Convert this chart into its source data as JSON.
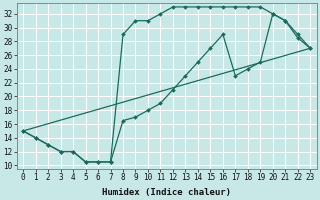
{
  "xlabel": "Humidex (Indice chaleur)",
  "bg_color": "#c8e8e8",
  "grid_color": "#ffffff",
  "line_color": "#1a6b5a",
  "xlim": [
    -0.5,
    23.5
  ],
  "ylim": [
    9.5,
    33.5
  ],
  "xticks": [
    0,
    1,
    2,
    3,
    4,
    5,
    6,
    7,
    8,
    9,
    10,
    11,
    12,
    13,
    14,
    15,
    16,
    17,
    18,
    19,
    20,
    21,
    22,
    23
  ],
  "yticks": [
    10,
    12,
    14,
    16,
    18,
    20,
    22,
    24,
    26,
    28,
    30,
    32
  ],
  "line1_x": [
    0,
    1,
    2,
    3,
    4,
    5,
    6,
    7,
    8,
    9,
    10,
    11,
    12,
    13,
    14,
    15,
    16,
    17,
    18,
    19,
    20,
    21,
    22,
    23
  ],
  "line1_y": [
    15,
    14,
    13,
    12,
    12,
    10.5,
    10.5,
    10.5,
    29,
    31,
    31,
    32,
    33,
    33,
    33,
    33,
    33,
    33,
    33,
    33,
    32,
    31,
    29,
    27
  ],
  "line2_x": [
    0,
    1,
    2,
    3,
    4,
    5,
    6,
    7,
    8,
    9,
    10,
    11,
    12,
    13,
    14,
    15,
    16,
    17,
    18,
    19,
    20,
    21,
    22,
    23
  ],
  "line2_y": [
    15,
    14,
    13,
    12,
    12,
    10.5,
    10.5,
    10.5,
    16.5,
    17,
    18,
    19,
    21,
    23,
    25,
    27,
    29,
    23,
    24,
    25,
    32,
    31,
    28.5,
    27
  ],
  "line3_x": [
    0,
    23
  ],
  "line3_y": [
    15,
    27
  ],
  "marker_style": "D",
  "marker_size": 2.0,
  "linewidth": 0.9,
  "tick_fontsize": 5.5,
  "xlabel_fontsize": 6.5
}
